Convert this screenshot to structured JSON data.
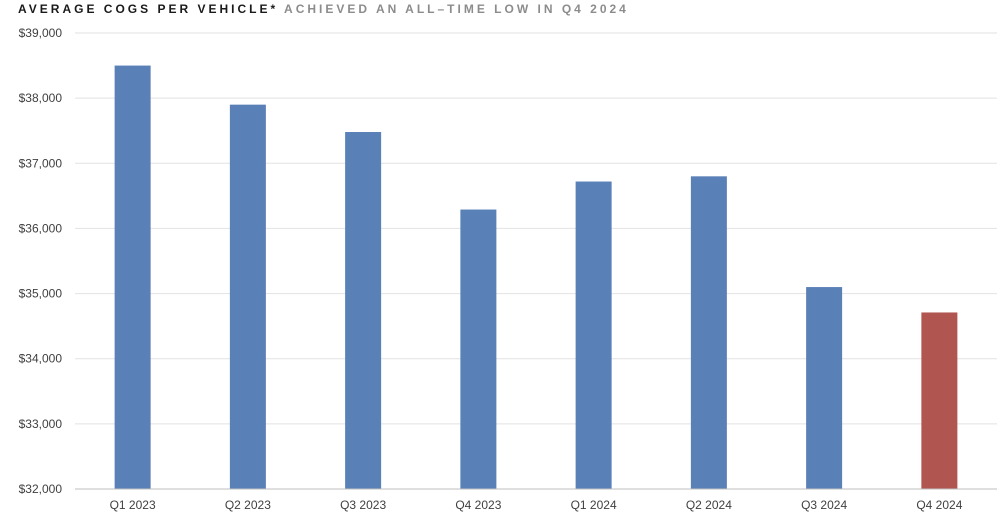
{
  "title": {
    "main": "AVERAGE COGS PER VEHICLE*",
    "sub": "ACHIEVED AN ALL–TIME LOW IN Q4 2024"
  },
  "chart_data": {
    "type": "bar",
    "categories": [
      "Q1 2023",
      "Q2 2023",
      "Q3 2023",
      "Q4 2023",
      "Q1 2024",
      "Q2 2024",
      "Q3 2024",
      "Q4 2024"
    ],
    "values": [
      38500,
      37900,
      37480,
      36290,
      36720,
      36800,
      35100,
      34710
    ],
    "ylim": [
      32000,
      39000
    ],
    "yticks": [
      32000,
      33000,
      34000,
      35000,
      36000,
      37000,
      38000,
      39000
    ],
    "ytick_labels": [
      "$32,000",
      "$33,000",
      "$34,000",
      "$35,000",
      "$36,000",
      "$37,000",
      "$38,000",
      "$39,000"
    ],
    "grid": true,
    "colors": {
      "default": "#5a80b8",
      "highlight": "#b0554f",
      "grid": "#e2e2e2",
      "axis": "#bfbfbf"
    },
    "highlight_category": "Q4 2024"
  }
}
